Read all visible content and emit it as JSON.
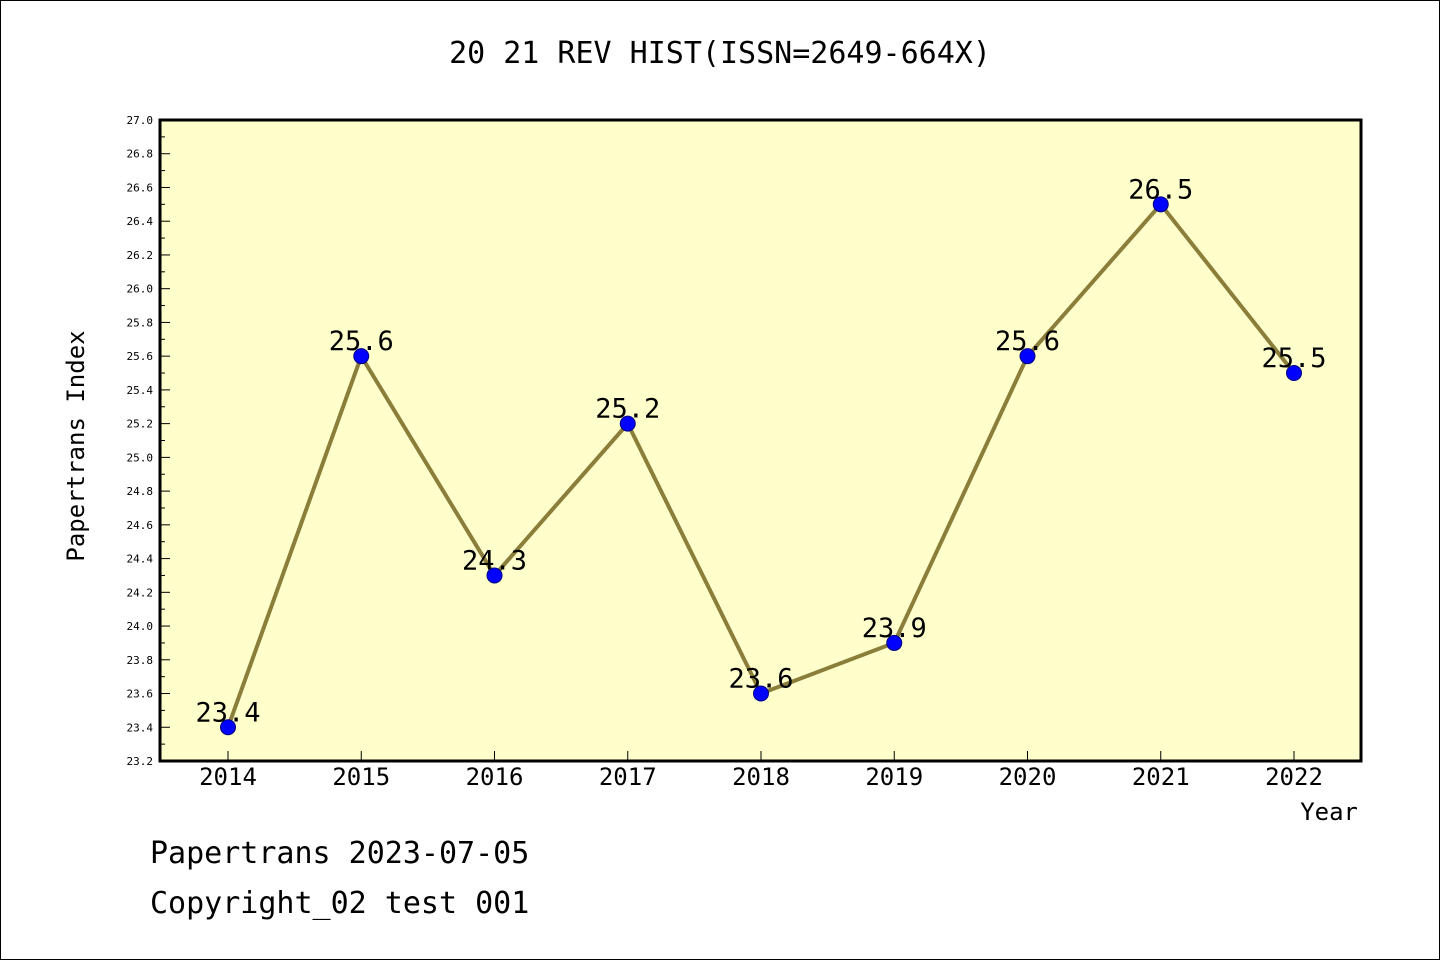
{
  "chart_data": {
    "type": "line",
    "title": "20 21 REV HIST(ISSN=2649-664X)",
    "xlabel": "Year",
    "ylabel": "Papertrans Index",
    "categories": [
      "2014",
      "2015",
      "2016",
      "2017",
      "2018",
      "2019",
      "2020",
      "2021",
      "2022"
    ],
    "series": [
      {
        "values": [
          23.4,
          25.6,
          24.3,
          25.2,
          23.6,
          23.9,
          25.6,
          26.5,
          25.5
        ],
        "data_labels": [
          "23.4",
          "25.6",
          "24.3",
          "25.2",
          "23.6",
          "23.9",
          "25.6",
          "26.5",
          "25.5"
        ]
      }
    ],
    "ylim": [
      23.2,
      27.0
    ],
    "y_ticks": [
      "23.2",
      "23.4",
      "23.6",
      "23.8",
      "24.0",
      "24.2",
      "24.4",
      "24.6",
      "24.8",
      "25.0",
      "25.2",
      "25.4",
      "25.6",
      "25.8",
      "26.0",
      "26.2",
      "26.4",
      "26.6",
      "26.8",
      "27.0"
    ],
    "grid": false,
    "legend": "none",
    "colors": {
      "plot_background": "#ffffcc",
      "line": "#8b7d3a",
      "marker": "#0000ff",
      "marker_edge": "#000080",
      "axes": "#000000"
    }
  },
  "footer": {
    "line1": "Papertrans 2023-07-05",
    "line2": "Copyright_02 test 001"
  }
}
